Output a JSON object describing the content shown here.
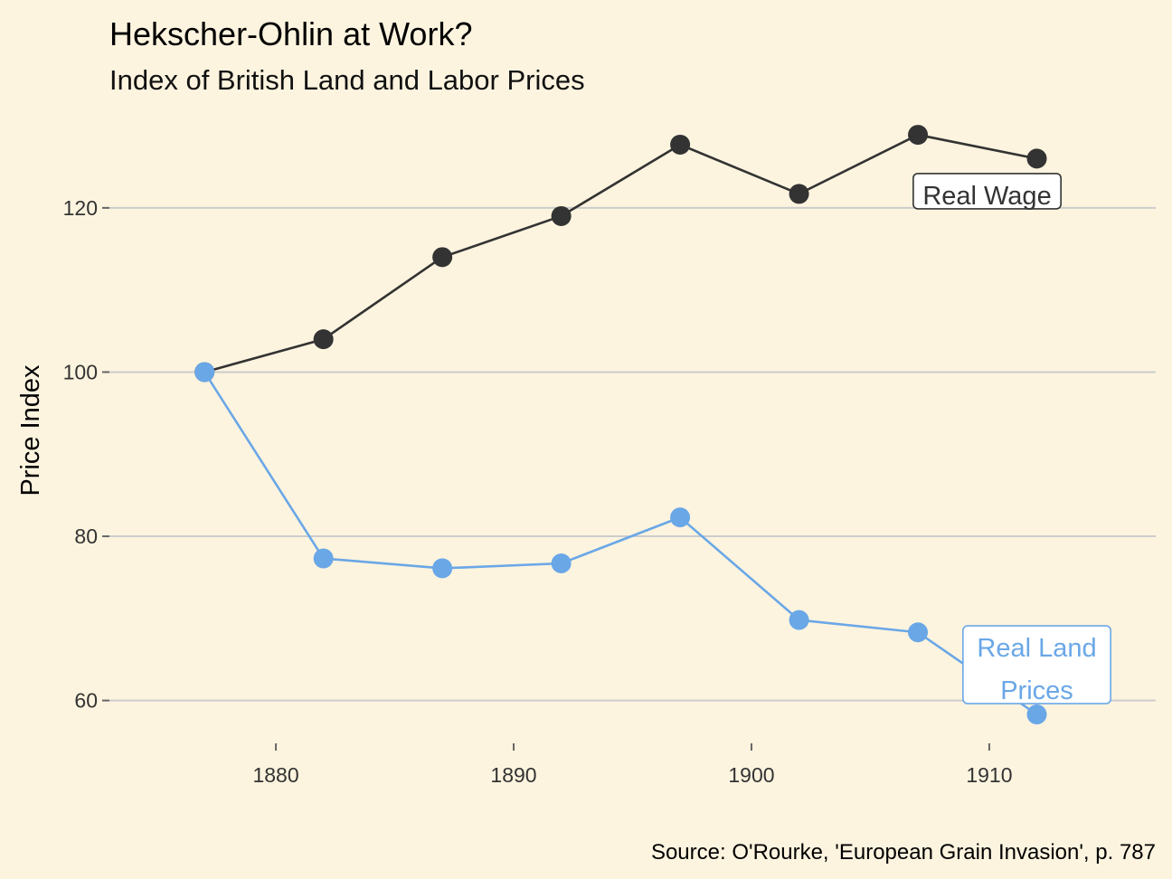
{
  "chart_data": {
    "type": "line",
    "title": "Hekscher-Ohlin at Work?",
    "subtitle": "Index of British Land and Labor Prices",
    "caption": "Source: O'Rourke, 'European Grain Invasion', p. 787",
    "xlabel": "",
    "ylabel": "Price Index",
    "xlim": [
      1873,
      1917
    ],
    "ylim": [
      55,
      131
    ],
    "xticks": [
      1880,
      1890,
      1900,
      1910
    ],
    "yticks": [
      60,
      80,
      100,
      120
    ],
    "grid": "horizontal major",
    "legend": "none (direct labels)",
    "x": [
      1877,
      1882,
      1887,
      1892,
      1897,
      1902,
      1907,
      1912
    ],
    "series": [
      {
        "name": "Real Wage",
        "color": "#333333",
        "values": [
          100,
          104,
          114,
          119,
          127.7,
          121.7,
          128.9,
          126
        ],
        "label_lines": [
          "Real Wage"
        ]
      },
      {
        "name": "Real Land Prices",
        "color": "#6aa7e7",
        "values": [
          100,
          77.3,
          76.1,
          76.7,
          82.3,
          69.8,
          68.3,
          58.3
        ],
        "label_lines": [
          "Real Land",
          "Prices"
        ]
      }
    ]
  }
}
